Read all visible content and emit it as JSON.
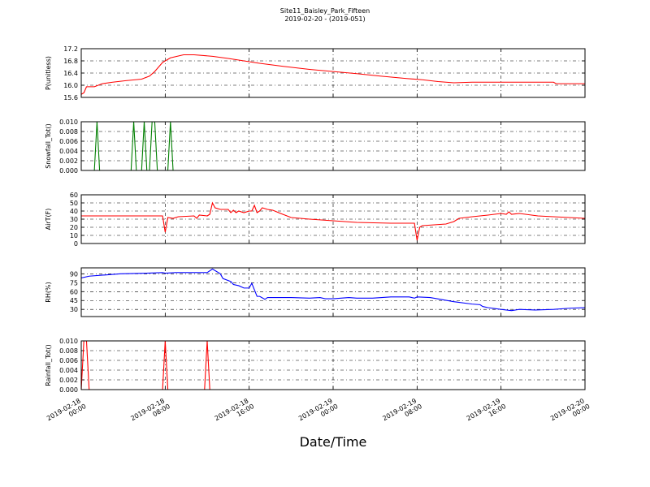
{
  "chart_data": [
    {
      "type": "line",
      "title": "Site11_Baisley_Park_Fifteen",
      "subtitle": "2019-02-20 - (2019-051)",
      "ylabel": "P(unitless)",
      "color": "#ff0000",
      "x": [
        "2019-02-18 00:00",
        "2019-02-18 00:15",
        "2019-02-18 00:30",
        "2019-02-18 01:15",
        "2019-02-18 02:00",
        "2019-02-18 03:00",
        "2019-02-18 04:15",
        "2019-02-18 05:45",
        "2019-02-18 06:30",
        "2019-02-18 07:00",
        "2019-02-18 07:45",
        "2019-02-18 08:30",
        "2019-02-18 09:45",
        "2019-02-18 10:45",
        "2019-02-18 12:30",
        "2019-02-18 14:00",
        "2019-02-18 15:30",
        "2019-02-18 17:00",
        "2019-02-18 19:15",
        "2019-02-18 21:45",
        "2019-02-19 00:00",
        "2019-02-19 02:15",
        "2019-02-19 04:30",
        "2019-02-19 07:00",
        "2019-02-19 08:30",
        "2019-02-19 10:00",
        "2019-02-19 11:30",
        "2019-02-19 13:15",
        "2019-02-19 21:00",
        "2019-02-19 21:15",
        "2019-02-20 00:00"
      ],
      "values": [
        15.7,
        15.75,
        15.95,
        15.95,
        16.05,
        16.1,
        16.15,
        16.2,
        16.3,
        16.45,
        16.75,
        16.9,
        17.0,
        17.0,
        16.95,
        16.88,
        16.8,
        16.72,
        16.62,
        16.52,
        16.45,
        16.38,
        16.3,
        16.22,
        16.18,
        16.12,
        16.08,
        16.1,
        16.1,
        16.05,
        16.05
      ],
      "ylim": [
        15.6,
        17.2
      ],
      "yticks": [
        {
          "value": 15.6,
          "label": "15.6"
        },
        {
          "value": 16,
          "label": "16.0"
        },
        16.4,
        16.8,
        17.2
      ],
      "grid": true
    },
    {
      "type": "line",
      "ylabel": "Snowfall_Tot()",
      "color": "#007f00",
      "x": [
        "2019-02-18 00:00",
        "2019-02-18 01:15",
        "2019-02-18 01:30",
        "2019-02-18 01:45",
        "2019-02-18 04:45",
        "2019-02-18 05:00",
        "2019-02-18 05:15",
        "2019-02-18 05:45",
        "2019-02-18 06:00",
        "2019-02-18 06:15",
        "2019-02-18 06:30",
        "2019-02-18 06:45",
        "2019-02-18 07:00",
        "2019-02-18 07:15",
        "2019-02-18 08:15",
        "2019-02-18 08:30",
        "2019-02-18 08:45",
        "2019-02-20 00:00"
      ],
      "values": [
        0,
        0,
        0.01,
        0,
        0,
        0.01,
        0,
        0,
        0.01,
        0,
        0,
        0.01,
        0.01,
        0,
        0,
        0.01,
        0,
        0
      ],
      "ylim": [
        0,
        0.01
      ],
      "yticks": [
        {
          "value": 0,
          "label": "0.000"
        },
        {
          "value": 0.002,
          "label": "0.002"
        },
        {
          "value": 0.004,
          "label": "0.004"
        },
        {
          "value": 0.006,
          "label": "0.006"
        },
        {
          "value": 0.008,
          "label": "0.008"
        },
        {
          "value": 0.01,
          "label": "0.010"
        }
      ],
      "grid": true
    },
    {
      "type": "line",
      "ylabel": "AirT(F)",
      "color": "#ff0000",
      "x": [
        "2019-02-18 00:00",
        "2019-02-18 07:45",
        "2019-02-18 08:00",
        "2019-02-18 08:15",
        "2019-02-18 08:45",
        "2019-02-18 09:15",
        "2019-02-18 10:45",
        "2019-02-18 11:00",
        "2019-02-18 11:15",
        "2019-02-18 12:00",
        "2019-02-18 12:15",
        "2019-02-18 12:30",
        "2019-02-18 12:45",
        "2019-02-18 13:15",
        "2019-02-18 14:00",
        "2019-02-18 14:15",
        "2019-02-18 14:30",
        "2019-02-18 14:45",
        "2019-02-18 15:00",
        "2019-02-18 15:30",
        "2019-02-18 16:00",
        "2019-02-18 16:15",
        "2019-02-18 16:30",
        "2019-02-18 16:45",
        "2019-02-18 17:00",
        "2019-02-18 17:15",
        "2019-02-18 17:45",
        "2019-02-18 18:15",
        "2019-02-18 19:00",
        "2019-02-18 20:00",
        "2019-02-18 21:45",
        "2019-02-19 00:00",
        "2019-02-19 02:15",
        "2019-02-19 05:30",
        "2019-02-19 07:45",
        "2019-02-19 08:00",
        "2019-02-19 08:15",
        "2019-02-19 08:30",
        "2019-02-19 10:45",
        "2019-02-19 11:30",
        "2019-02-19 12:00",
        "2019-02-19 13:15",
        "2019-02-19 14:45",
        "2019-02-19 16:00",
        "2019-02-19 16:30",
        "2019-02-19 16:45",
        "2019-02-19 17:00",
        "2019-02-19 17:45",
        "2019-02-19 19:30",
        "2019-02-20 00:00"
      ],
      "values": [
        34,
        34,
        14,
        32,
        31,
        33,
        34,
        31,
        35,
        34,
        36,
        50,
        44,
        42,
        42,
        38,
        41,
        38,
        40,
        38,
        40,
        40,
        47,
        38,
        40,
        44,
        42,
        41,
        37,
        32,
        30,
        28,
        26,
        25,
        25,
        4,
        20,
        22,
        24,
        27,
        31,
        33,
        35,
        37,
        36,
        39,
        36,
        37,
        34,
        31
      ],
      "ylim": [
        0,
        60
      ],
      "yticks": [
        0,
        10,
        20,
        30,
        40,
        50,
        60
      ],
      "grid": true
    },
    {
      "type": "line",
      "ylabel": "RH(%)",
      "color": "#0000ff",
      "x": [
        "2019-02-18 00:00",
        "2019-02-18 00:45",
        "2019-02-18 02:15",
        "2019-02-18 03:45",
        "2019-02-18 06:15",
        "2019-02-18 07:45",
        "2019-02-18 08:00",
        "2019-02-18 09:00",
        "2019-02-18 10:45",
        "2019-02-18 12:00",
        "2019-02-18 12:30",
        "2019-02-18 13:15",
        "2019-02-18 13:30",
        "2019-02-18 14:15",
        "2019-02-18 14:30",
        "2019-02-18 15:00",
        "2019-02-18 15:30",
        "2019-02-18 16:00",
        "2019-02-18 16:15",
        "2019-02-18 16:45",
        "2019-02-18 17:00",
        "2019-02-18 17:30",
        "2019-02-18 17:45",
        "2019-02-18 19:00",
        "2019-02-18 20:00",
        "2019-02-18 21:45",
        "2019-02-18 22:45",
        "2019-02-18 23:15",
        "2019-02-19 00:00",
        "2019-02-19 01:30",
        "2019-02-19 02:15",
        "2019-02-19 03:45",
        "2019-02-19 05:30",
        "2019-02-19 07:15",
        "2019-02-19 07:45",
        "2019-02-19 08:00",
        "2019-02-19 09:15",
        "2019-02-19 11:30",
        "2019-02-19 13:15",
        "2019-02-19 14:00",
        "2019-02-19 14:15",
        "2019-02-19 14:45",
        "2019-02-19 16:00",
        "2019-02-19 17:00",
        "2019-02-19 17:45",
        "2019-02-19 19:15",
        "2019-02-19 21:00",
        "2019-02-19 22:30",
        "2019-02-20 00:00"
      ],
      "values": [
        83,
        86,
        88,
        90,
        91,
        92,
        91,
        92,
        92,
        92,
        98,
        90,
        82,
        77,
        72,
        70,
        66,
        66,
        74,
        52,
        52,
        47,
        50,
        50,
        50,
        49,
        50,
        48,
        48,
        50,
        49,
        49,
        51,
        51,
        49,
        51,
        50,
        43,
        39,
        38,
        35,
        33,
        30,
        28,
        30,
        29,
        30,
        32,
        33
      ],
      "ylim": [
        18,
        100
      ],
      "yticks": [
        30,
        45,
        60,
        75,
        90
      ],
      "grid": true
    },
    {
      "type": "line",
      "ylabel": "Rainfall_Tot()",
      "xlabel": "Date/Time",
      "color": "#ff0000",
      "x": [
        "2019-02-18 00:00",
        "2019-02-18 00:15",
        "2019-02-18 00:30",
        "2019-02-18 00:45",
        "2019-02-18 07:45",
        "2019-02-18 08:00",
        "2019-02-18 08:15",
        "2019-02-18 11:45",
        "2019-02-18 12:00",
        "2019-02-18 12:15",
        "2019-02-20 00:00"
      ],
      "values": [
        0,
        0.01,
        0.01,
        0,
        0,
        0.01,
        0,
        0,
        0.01,
        0,
        0
      ],
      "ylim": [
        0,
        0.01
      ],
      "yticks": [
        {
          "value": 0,
          "label": "0.000"
        },
        {
          "value": 0.002,
          "label": "0.002"
        },
        {
          "value": 0.004,
          "label": "0.004"
        },
        {
          "value": 0.006,
          "label": "0.006"
        },
        {
          "value": 0.008,
          "label": "0.008"
        },
        {
          "value": 0.01,
          "label": "0.010"
        }
      ],
      "grid": true,
      "xlim": [
        "2019-02-18 00:00",
        "2019-02-20 00:00"
      ],
      "xticks": [
        {
          "value": "2019-02-18 00:00",
          "label": "2019-02-18\n00:00"
        },
        {
          "value": "2019-02-18 08:00",
          "label": "2019-02-18\n08:00"
        },
        {
          "value": "2019-02-18 16:00",
          "label": "2019-02-18\n16:00"
        },
        {
          "value": "2019-02-19 00:00",
          "label": "2019-02-19\n00:00"
        },
        {
          "value": "2019-02-19 08:00",
          "label": "2019-02-19\n08:00"
        },
        {
          "value": "2019-02-19 16:00",
          "label": "2019-02-19\n16:00"
        },
        {
          "value": "2019-02-20 00:00",
          "label": "2019-02-20\n00:00"
        }
      ]
    }
  ]
}
